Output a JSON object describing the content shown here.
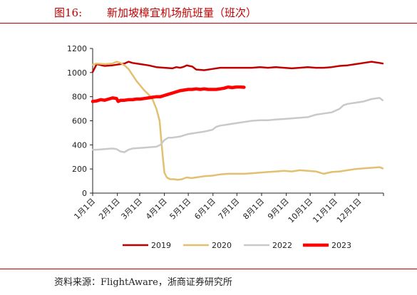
{
  "header": {
    "figure_label": "图16:",
    "title": "新加坡樟宜机场航班量（班次）"
  },
  "footer": {
    "source": "资料来源：FlightAware，浙商证券研究所"
  },
  "chart_data": {
    "type": "line",
    "ylim": [
      0,
      1200
    ],
    "yticks": [
      0,
      200,
      400,
      600,
      800,
      1000,
      1200
    ],
    "xlim": [
      0,
      365
    ],
    "x_ticks": [
      {
        "label": "1月1日",
        "day": 0
      },
      {
        "label": "2月1日",
        "day": 31
      },
      {
        "label": "3月1日",
        "day": 59
      },
      {
        "label": "4月1日",
        "day": 90
      },
      {
        "label": "5月1日",
        "day": 120
      },
      {
        "label": "6月1日",
        "day": 151
      },
      {
        "label": "7月1日",
        "day": 181
      },
      {
        "label": "8月1日",
        "day": 212
      },
      {
        "label": "9月1日",
        "day": 243
      },
      {
        "label": "10月1日",
        "day": 273
      },
      {
        "label": "11月1日",
        "day": 304
      },
      {
        "label": "12月1日",
        "day": 334
      }
    ],
    "grid": false,
    "legend_position": "bottom",
    "series": [
      {
        "name": "2019",
        "color": "#c00000",
        "width": 2.5,
        "points": [
          [
            0,
            1005
          ],
          [
            5,
            1070
          ],
          [
            15,
            1055
          ],
          [
            25,
            1060
          ],
          [
            30,
            1065
          ],
          [
            35,
            1070
          ],
          [
            40,
            1075
          ],
          [
            45,
            1090
          ],
          [
            50,
            1080
          ],
          [
            60,
            1070
          ],
          [
            70,
            1060
          ],
          [
            80,
            1045
          ],
          [
            90,
            1040
          ],
          [
            100,
            1035
          ],
          [
            105,
            1045
          ],
          [
            110,
            1040
          ],
          [
            115,
            1050
          ],
          [
            118,
            1060
          ],
          [
            121,
            1055
          ],
          [
            125,
            1050
          ],
          [
            130,
            1025
          ],
          [
            140,
            1020
          ],
          [
            150,
            1030
          ],
          [
            160,
            1040
          ],
          [
            170,
            1040
          ],
          [
            180,
            1040
          ],
          [
            190,
            1040
          ],
          [
            200,
            1040
          ],
          [
            210,
            1045
          ],
          [
            220,
            1040
          ],
          [
            230,
            1045
          ],
          [
            240,
            1040
          ],
          [
            250,
            1035
          ],
          [
            260,
            1040
          ],
          [
            270,
            1045
          ],
          [
            280,
            1040
          ],
          [
            290,
            1040
          ],
          [
            300,
            1045
          ],
          [
            310,
            1055
          ],
          [
            320,
            1060
          ],
          [
            330,
            1070
          ],
          [
            340,
            1080
          ],
          [
            350,
            1090
          ],
          [
            360,
            1080
          ],
          [
            364,
            1075
          ]
        ]
      },
      {
        "name": "2020",
        "color": "#e2c070",
        "width": 2.5,
        "points": [
          [
            0,
            1065
          ],
          [
            5,
            1075
          ],
          [
            15,
            1070
          ],
          [
            25,
            1075
          ],
          [
            30,
            1090
          ],
          [
            35,
            1080
          ],
          [
            40,
            1060
          ],
          [
            45,
            1030
          ],
          [
            50,
            980
          ],
          [
            55,
            930
          ],
          [
            60,
            890
          ],
          [
            65,
            850
          ],
          [
            70,
            820
          ],
          [
            75,
            780
          ],
          [
            80,
            700
          ],
          [
            84,
            600
          ],
          [
            86,
            450
          ],
          [
            88,
            300
          ],
          [
            90,
            170
          ],
          [
            93,
            130
          ],
          [
            97,
            115
          ],
          [
            102,
            115
          ],
          [
            107,
            110
          ],
          [
            112,
            115
          ],
          [
            118,
            130
          ],
          [
            124,
            125
          ],
          [
            130,
            130
          ],
          [
            140,
            140
          ],
          [
            150,
            145
          ],
          [
            160,
            155
          ],
          [
            170,
            160
          ],
          [
            180,
            160
          ],
          [
            190,
            160
          ],
          [
            200,
            165
          ],
          [
            210,
            170
          ],
          [
            220,
            175
          ],
          [
            230,
            180
          ],
          [
            240,
            185
          ],
          [
            250,
            180
          ],
          [
            260,
            190
          ],
          [
            270,
            185
          ],
          [
            280,
            180
          ],
          [
            290,
            160
          ],
          [
            300,
            175
          ],
          [
            310,
            180
          ],
          [
            320,
            190
          ],
          [
            330,
            200
          ],
          [
            340,
            205
          ],
          [
            350,
            210
          ],
          [
            360,
            215
          ],
          [
            364,
            205
          ]
        ]
      },
      {
        "name": "2022",
        "color": "#c9c9c9",
        "width": 2.5,
        "points": [
          [
            0,
            360
          ],
          [
            5,
            360
          ],
          [
            15,
            365
          ],
          [
            25,
            370
          ],
          [
            30,
            365
          ],
          [
            35,
            345
          ],
          [
            40,
            340
          ],
          [
            45,
            360
          ],
          [
            50,
            370
          ],
          [
            60,
            375
          ],
          [
            70,
            380
          ],
          [
            80,
            385
          ],
          [
            85,
            400
          ],
          [
            90,
            440
          ],
          [
            95,
            460
          ],
          [
            100,
            460
          ],
          [
            110,
            470
          ],
          [
            120,
            490
          ],
          [
            130,
            500
          ],
          [
            140,
            510
          ],
          [
            150,
            525
          ],
          [
            155,
            550
          ],
          [
            160,
            560
          ],
          [
            170,
            570
          ],
          [
            180,
            580
          ],
          [
            190,
            590
          ],
          [
            200,
            600
          ],
          [
            210,
            605
          ],
          [
            220,
            605
          ],
          [
            230,
            610
          ],
          [
            240,
            615
          ],
          [
            250,
            620
          ],
          [
            260,
            625
          ],
          [
            270,
            630
          ],
          [
            280,
            650
          ],
          [
            290,
            660
          ],
          [
            300,
            670
          ],
          [
            310,
            700
          ],
          [
            315,
            730
          ],
          [
            320,
            740
          ],
          [
            330,
            750
          ],
          [
            340,
            760
          ],
          [
            350,
            780
          ],
          [
            360,
            790
          ],
          [
            364,
            770
          ]
        ]
      },
      {
        "name": "2023",
        "color": "#ff0000",
        "width": 4.5,
        "points": [
          [
            0,
            760
          ],
          [
            5,
            765
          ],
          [
            10,
            775
          ],
          [
            15,
            770
          ],
          [
            20,
            780
          ],
          [
            25,
            790
          ],
          [
            30,
            785
          ],
          [
            32,
            760
          ],
          [
            35,
            770
          ],
          [
            40,
            770
          ],
          [
            45,
            775
          ],
          [
            50,
            775
          ],
          [
            55,
            780
          ],
          [
            60,
            780
          ],
          [
            65,
            785
          ],
          [
            70,
            790
          ],
          [
            75,
            795
          ],
          [
            80,
            800
          ],
          [
            85,
            800
          ],
          [
            90,
            810
          ],
          [
            95,
            820
          ],
          [
            100,
            830
          ],
          [
            105,
            840
          ],
          [
            110,
            850
          ],
          [
            115,
            855
          ],
          [
            120,
            860
          ],
          [
            125,
            860
          ],
          [
            130,
            865
          ],
          [
            135,
            860
          ],
          [
            140,
            865
          ],
          [
            145,
            860
          ],
          [
            150,
            860
          ],
          [
            155,
            860
          ],
          [
            160,
            865
          ],
          [
            165,
            870
          ],
          [
            170,
            880
          ],
          [
            175,
            875
          ],
          [
            180,
            880
          ],
          [
            185,
            880
          ],
          [
            190,
            878
          ]
        ]
      }
    ]
  }
}
